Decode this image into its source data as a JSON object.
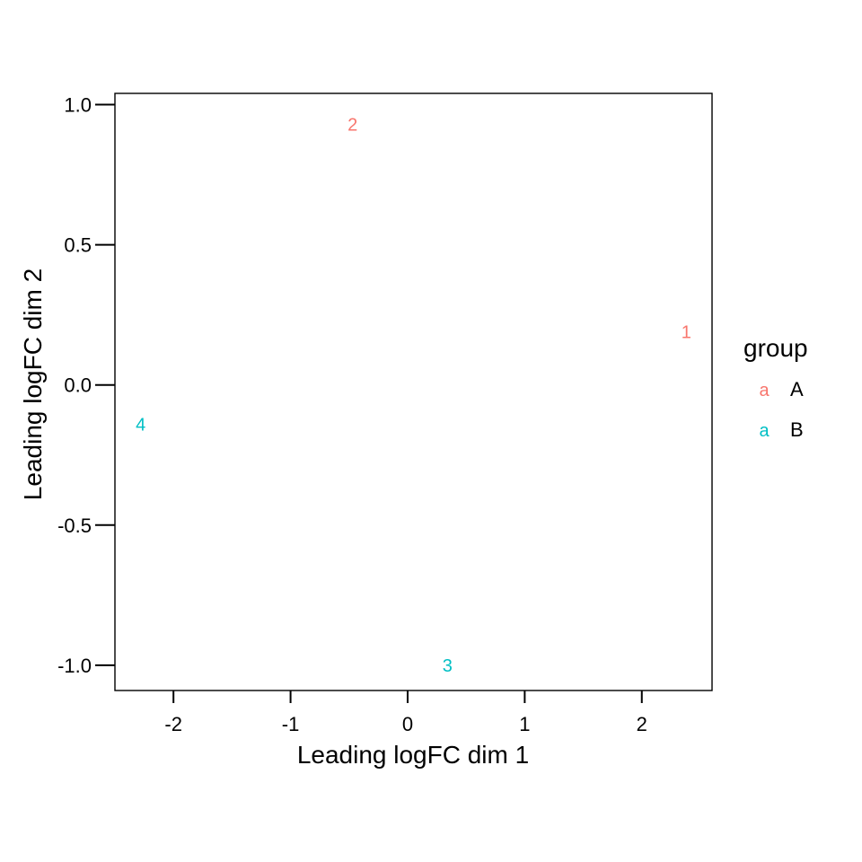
{
  "chart_data": {
    "type": "scatter",
    "title": "",
    "xlabel": "Leading logFC dim 1",
    "ylabel": "Leading logFC dim 2",
    "xlim": [
      -2.5,
      2.6
    ],
    "ylim": [
      -1.09,
      1.04
    ],
    "x_ticks": [
      -2,
      -1,
      0,
      1,
      2
    ],
    "x_tick_labels": [
      "-2",
      "-1",
      "0",
      "1",
      "2"
    ],
    "y_ticks": [
      -1.0,
      -0.5,
      0.0,
      0.5,
      1.0
    ],
    "y_tick_labels": [
      "-1.0",
      "-0.5",
      "0.0",
      "0.5",
      "1.0"
    ],
    "grid": false,
    "legend": {
      "title": "group",
      "placement": "right",
      "key_glyph": "a",
      "entries": [
        {
          "label": "A",
          "color": "#F8766D"
        },
        {
          "label": "B",
          "color": "#00BFC4"
        }
      ]
    },
    "points": [
      {
        "label": "1",
        "x": 2.38,
        "y": 0.19,
        "group": "A"
      },
      {
        "label": "2",
        "x": -0.47,
        "y": 0.93,
        "group": "A"
      },
      {
        "label": "3",
        "x": 0.34,
        "y": -1.0,
        "group": "B"
      },
      {
        "label": "4",
        "x": -2.28,
        "y": -0.14,
        "group": "B"
      }
    ]
  }
}
